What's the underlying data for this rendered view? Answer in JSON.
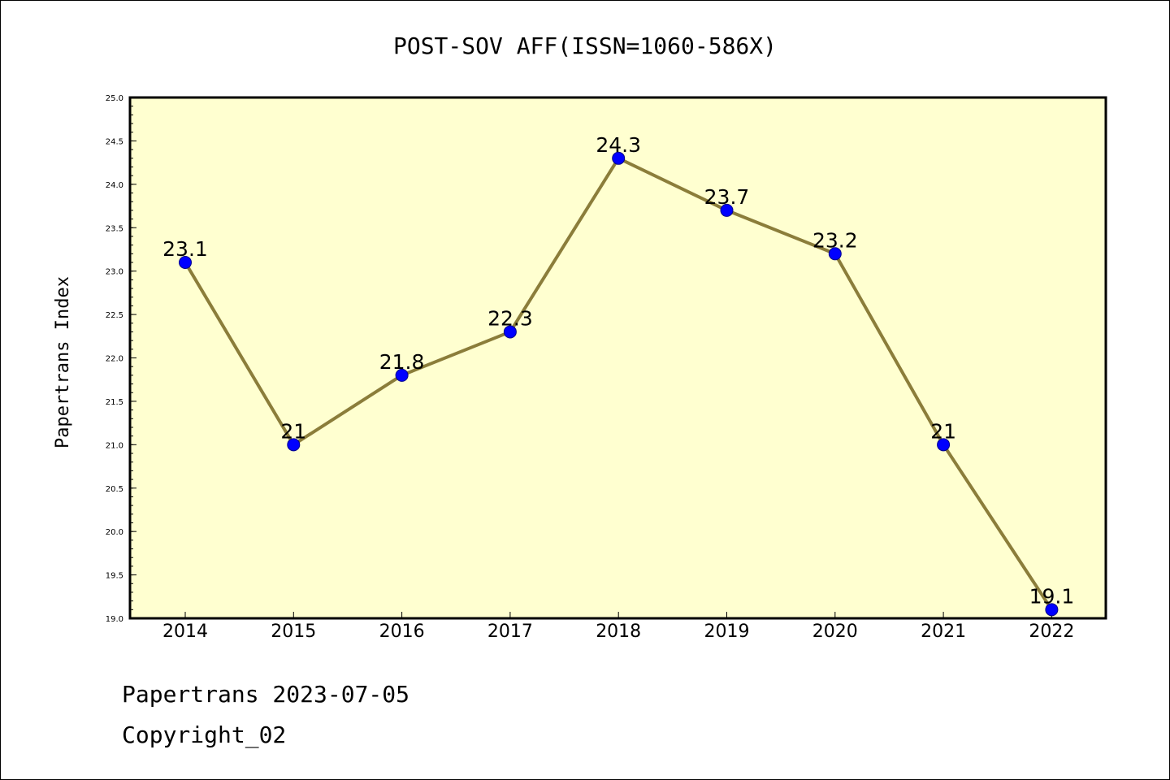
{
  "chart_data": {
    "type": "line",
    "title": "POST-SOV AFF(ISSN=1060-586X)",
    "ylabel": "Papertrans Index",
    "xlabel": "",
    "categories": [
      "2014",
      "2015",
      "2016",
      "2017",
      "2018",
      "2019",
      "2020",
      "2021",
      "2022"
    ],
    "values": [
      23.1,
      21,
      21.8,
      22.3,
      24.3,
      23.7,
      23.2,
      21,
      19.1
    ],
    "data_labels": [
      "23.1",
      "21",
      "21.8",
      "22.3",
      "24.3",
      "23.7",
      "23.2",
      "21",
      "19.1"
    ],
    "ylim": [
      19.0,
      25.0
    ],
    "yticks": [
      "19.0",
      "19.5",
      "20.0",
      "20.5",
      "21.0",
      "21.5",
      "22.0",
      "22.5",
      "23.0",
      "23.5",
      "24.0",
      "24.5",
      "25.0"
    ],
    "grid": false,
    "legend": "none",
    "colors": {
      "plot_background": "#ffffd0",
      "line": "#8b7d3a",
      "marker": "#0000ff"
    }
  },
  "footer": {
    "line1": "Papertrans 2023-07-05",
    "line2": "Copyright_02"
  }
}
